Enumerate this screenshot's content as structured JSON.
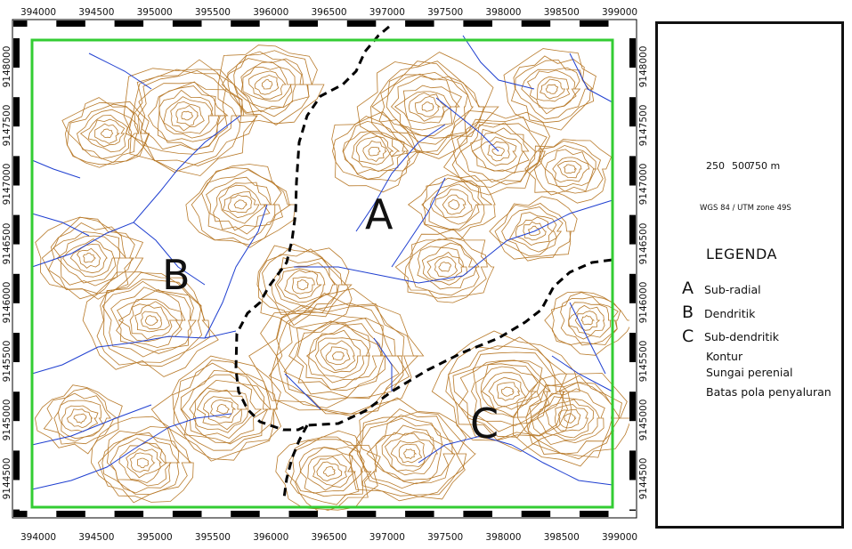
{
  "map": {
    "x_ticks": [
      "394000",
      "394500",
      "395000",
      "395500",
      "396000",
      "396500",
      "397000",
      "397500",
      "398000",
      "398500",
      "399000"
    ],
    "y_ticks": [
      "9148000",
      "9147500",
      "9147000",
      "9146500",
      "9146000",
      "9145500",
      "9145000",
      "9144500"
    ],
    "region_labels": [
      "A",
      "B",
      "C"
    ],
    "colors": {
      "contour": "#b87a2a",
      "river": "#1f3fd0",
      "boundary": "#000000",
      "frame": "#33cc33"
    }
  },
  "legend": {
    "title": "LEGENDA",
    "items": [
      {
        "key": "A",
        "label": "Sub-radial"
      },
      {
        "key": "B",
        "label": "Dendritik"
      },
      {
        "key": "C",
        "label": "Sub-dendritik"
      },
      {
        "label": "Kontur"
      },
      {
        "label": "Sungai perenial"
      },
      {
        "label": "Batas pola penyaluran"
      }
    ],
    "scale": {
      "labels": [
        "250",
        "500",
        "750 m"
      ]
    },
    "crs": "WGS 84 / UTM zone 49S",
    "north_arrow": "north-arrow-icon"
  }
}
